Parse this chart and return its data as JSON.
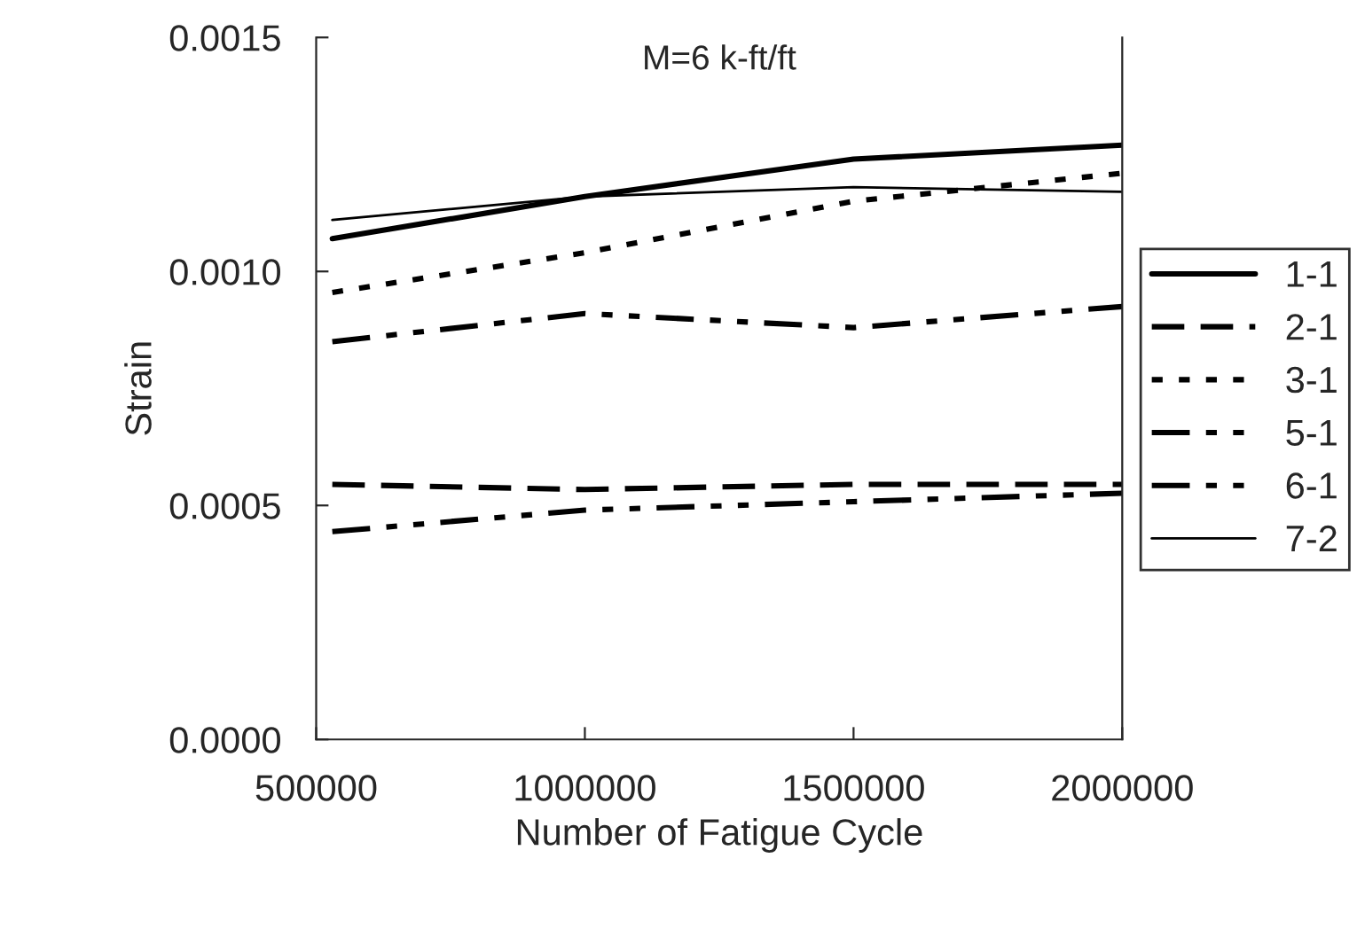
{
  "chart_data": {
    "type": "line",
    "title": "M=6 k-ft/ft",
    "xlabel": "Number of Fatigue Cycle",
    "ylabel": "Strain",
    "x": [
      530000,
      1000000,
      1500000,
      2000000
    ],
    "series": [
      {
        "name": "1-1",
        "color": "#000000",
        "line_style": "solid",
        "values": [
          0.00107,
          0.00116,
          0.00124,
          0.00127
        ]
      },
      {
        "name": "2-1",
        "color": "#000000",
        "line_style": "dashed",
        "values": [
          0.000545,
          0.000534,
          0.000545,
          0.000545
        ]
      },
      {
        "name": "3-1",
        "color": "#000000",
        "line_style": "dotted",
        "values": [
          0.000955,
          0.00104,
          0.00115,
          0.00121
        ]
      },
      {
        "name": "5-1",
        "color": "#000000",
        "line_style": "dashdot",
        "values": [
          0.000444,
          0.00049,
          0.000508,
          0.000526
        ]
      },
      {
        "name": "6-1",
        "color": "#000000",
        "line_style": "dashdot",
        "values": [
          0.00085,
          0.00091,
          0.00088,
          0.000925
        ]
      },
      {
        "name": "7-2",
        "color": "#000000",
        "line_style": "solid",
        "values": [
          0.00111,
          0.00116,
          0.00118,
          0.00117
        ]
      }
    ],
    "xlim": [
      500000,
      2000000
    ],
    "xticks": [
      500000,
      1000000,
      1500000,
      2000000
    ],
    "ylim": [
      0,
      0.0015
    ],
    "yticks": [
      {
        "value": 0,
        "label": "0.0000"
      },
      {
        "value": 0.0005,
        "label": "0.0005"
      },
      {
        "value": 0.001,
        "label": "0.0010"
      },
      {
        "value": 0.0015,
        "label": "0.0015"
      }
    ],
    "grid": false,
    "legend": "right",
    "marker": "none"
  }
}
